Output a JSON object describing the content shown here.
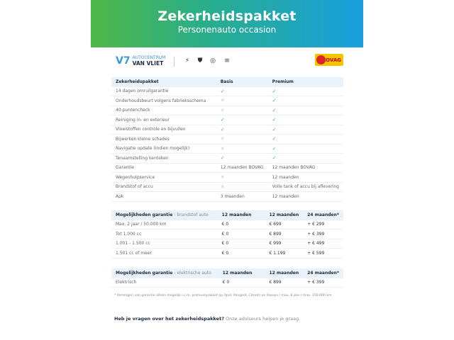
{
  "header": {
    "title": "Zekerheidspakket",
    "subtitle": "Personenauto occasion"
  },
  "logos": {
    "dealer_line1": "AUTOCENTRUM",
    "dealer_line2": "VAN VLIET",
    "bovag": "BOVAG",
    "brands": [
      "opel-logo",
      "peugeot-logo",
      "citroen-logo",
      "ds-logo"
    ]
  },
  "colors": {
    "gradient_start": "#4fb847",
    "gradient_end": "#1a9fe0",
    "check": "#3aa6a3",
    "header_row": "#e8f3fb"
  },
  "packages": {
    "headers": [
      "Zekerheidspakket",
      "Basis",
      "Premium"
    ],
    "rows": [
      {
        "label": "14 dagen omruilgarantie",
        "basis": "check",
        "premium": "check"
      },
      {
        "label": "Onderhoudsbeurt volgens fabrieksschema",
        "basis": "cross",
        "premium": "check"
      },
      {
        "label": "40-puntencheck",
        "basis": "cross",
        "premium": "check"
      },
      {
        "label": "Reiniging in- en exterieur",
        "basis": "check",
        "premium": "check"
      },
      {
        "label": "Vloeistoffen controle en bijvullen",
        "basis": "check",
        "premium": "check"
      },
      {
        "label": "Bijwerken kleine schades",
        "basis": "cross",
        "premium": "check"
      },
      {
        "label": "Navigatie update (indien mogelijk)",
        "basis": "cross",
        "premium": "check"
      },
      {
        "label": "Tenaamstelling kenteken",
        "basis": "check",
        "premium": "check"
      },
      {
        "label": "Garantie",
        "basis": "12 maanden BOVAG",
        "premium": "12 maanden BOVAG"
      },
      {
        "label": "Wegenhulpservice",
        "basis": "cross",
        "premium": "12 maanden"
      },
      {
        "label": "Brandstof of accu",
        "basis": "cross",
        "premium": "Volle tank of accu bij aflevering"
      },
      {
        "label": "Apk",
        "basis": "3 maanden",
        "premium": "12 maanden"
      }
    ]
  },
  "fuel": {
    "title": "Mogelijkheden garantie",
    "subtitle": "- brandstof auto",
    "headers": [
      "12 maanden",
      "12 maanden",
      "24 maanden*"
    ],
    "rows": [
      [
        "Max. 2 jaar / 50.000 km",
        "€ 0",
        "€ 699",
        "+ € 299"
      ],
      [
        "Tot 1.000 cc",
        "€ 0",
        "€ 899",
        "+ € 399"
      ],
      [
        "1.001 - 1.500 cc",
        "€ 0",
        "€ 999",
        "+ € 499"
      ],
      [
        "1.501 cc of meer",
        "€ 0",
        "€ 1.199",
        "+ € 599"
      ]
    ]
  },
  "electric": {
    "title": "Mogelijkheden garantie",
    "subtitle": "- elektrische auto",
    "headers": [
      "12 maanden",
      "12 maanden",
      "24 maanden*"
    ],
    "rows": [
      [
        "Elektrisch",
        "€ 0",
        "€ 899",
        "+ € 399"
      ]
    ]
  },
  "footnote": "* Verlengen van garantie alleen mogelijk i.c.m. premiumpakket op Opel, Peugeot, Citroën en Aiways / max. 8 jaar / max. 150.000 km.",
  "question": {
    "bold": "Heb je vragen over het zekerheidspakket?",
    "text": " Onze adviseurs helpen je graag."
  }
}
